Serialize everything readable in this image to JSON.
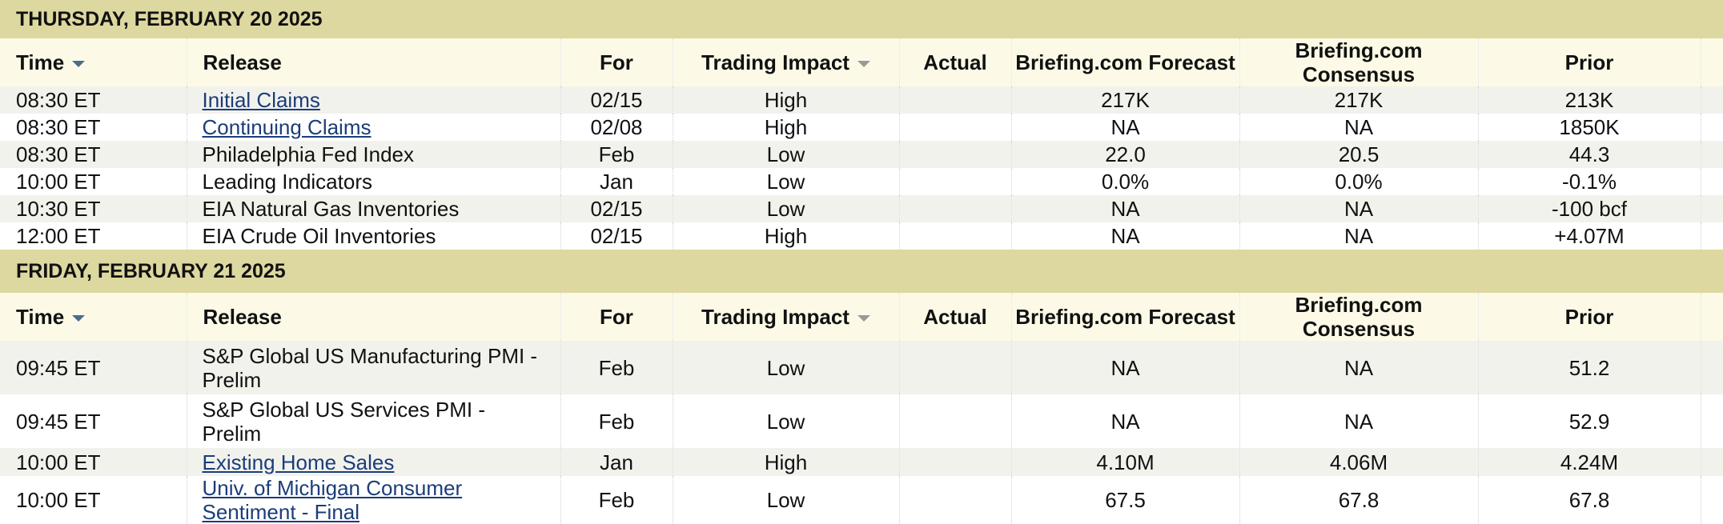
{
  "sections": [
    {
      "date": "THURSDAY, FEBRUARY 20 2025",
      "columns": [
        "Time",
        "Release",
        "For",
        "Trading Impact",
        "Actual",
        "Briefing.com Forecast",
        "Briefing.com Consensus",
        "Prior"
      ],
      "rows": [
        {
          "time": "08:30 ET",
          "release": "Initial Claims",
          "link": true,
          "for": "02/15",
          "impact": "High",
          "forecast": "217K",
          "consensus": "217K",
          "prior": "213K"
        },
        {
          "time": "08:30 ET",
          "release": "Continuing Claims",
          "link": true,
          "for": "02/08",
          "impact": "High",
          "forecast": "NA",
          "consensus": "NA",
          "prior": "1850K"
        },
        {
          "time": "08:30 ET",
          "release": "Philadelphia Fed Index",
          "for": "Feb",
          "impact": "Low",
          "forecast": "22.0",
          "consensus": "20.5",
          "prior": "44.3"
        },
        {
          "time": "10:00 ET",
          "release": "Leading Indicators",
          "for": "Jan",
          "impact": "Low",
          "forecast": "0.0%",
          "consensus": "0.0%",
          "prior": "-0.1%"
        },
        {
          "time": "10:30 ET",
          "release": "EIA Natural Gas Inventories",
          "for": "02/15",
          "impact": "Low",
          "forecast": "NA",
          "consensus": "NA",
          "prior": "-100 bcf"
        },
        {
          "time": "12:00 ET",
          "release": "EIA Crude Oil Inventories",
          "for": "02/15",
          "impact": "High",
          "forecast": "NA",
          "consensus": "NA",
          "prior": "+4.07M"
        }
      ]
    },
    {
      "date": "FRIDAY, FEBRUARY 21 2025",
      "columns": [
        "Time",
        "Release",
        "For",
        "Trading Impact",
        "Actual",
        "Briefing.com Forecast",
        "Briefing.com Consensus",
        "Prior"
      ],
      "rows": [
        {
          "time": "09:45 ET",
          "release": "S&P Global US Manufacturing PMI - Prelim",
          "for": "Feb",
          "impact": "Low",
          "forecast": "NA",
          "consensus": "NA",
          "prior": "51.2"
        },
        {
          "time": "09:45 ET",
          "release": "S&P Global US Services PMI - Prelim",
          "for": "Feb",
          "impact": "Low",
          "forecast": "NA",
          "consensus": "NA",
          "prior": "52.9"
        },
        {
          "time": "10:00 ET",
          "release": "Existing Home Sales",
          "link": true,
          "for": "Jan",
          "impact": "High",
          "forecast": "4.10M",
          "consensus": "4.06M",
          "prior": "4.24M"
        },
        {
          "time": "10:00 ET",
          "release": "Univ. of Michigan Consumer Sentiment - Final",
          "link": true,
          "for": "Feb",
          "impact": "Low",
          "forecast": "67.5",
          "consensus": "67.8",
          "prior": "67.8"
        }
      ]
    }
  ]
}
